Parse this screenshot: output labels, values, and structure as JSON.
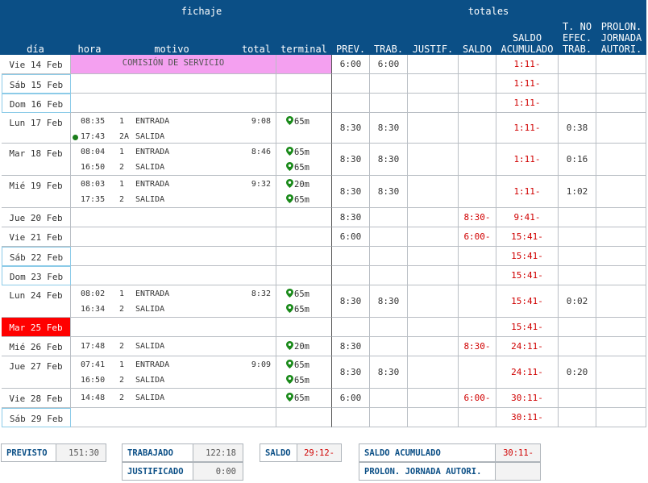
{
  "header": {
    "fichaje": "fichaje",
    "totales": "totales",
    "dia": "día",
    "hora": "hora",
    "motivo": "motivo",
    "total": "total",
    "terminal": "terminal",
    "prev": "PREV.",
    "trab": "TRAB.",
    "justif": "JUSTIF.",
    "saldo": "SALDO",
    "saldo_acum_1": "SALDO",
    "saldo_acum_2": "ACUMULADO",
    "tno_1": "T. NO",
    "tno_2": "EFEC.",
    "tno_3": "TRAB.",
    "prol_1": "PROLON.",
    "prol_2": "JORNADA",
    "prol_3": "AUTORI."
  },
  "rows": [
    {
      "dia": "Vie 14 Feb",
      "type": "weekday",
      "comision": "COMISIÓN DE SERVICIO",
      "entries": [],
      "prev": "6:00",
      "trab": "6:00",
      "saldo": "",
      "acum": "1:11-",
      "tno": ""
    },
    {
      "dia": "Sáb 15 Feb",
      "type": "weekend",
      "entries": [],
      "prev": "",
      "trab": "",
      "saldo": "",
      "acum": "1:11-",
      "tno": ""
    },
    {
      "dia": "Dom 16 Feb",
      "type": "weekend",
      "entries": [],
      "prev": "",
      "trab": "",
      "saldo": "",
      "acum": "1:11-",
      "tno": ""
    },
    {
      "dia": "Lun 17 Feb",
      "type": "weekday",
      "total": "9:08",
      "entries": [
        {
          "hora": "08:35",
          "num": "1",
          "motivo": "ENTRADA",
          "term": "65m"
        },
        {
          "hora": "17:43",
          "num": "2A",
          "motivo": "SALIDA",
          "term": "",
          "dot": true
        }
      ],
      "prev": "8:30",
      "trab": "8:30",
      "saldo": "",
      "acum": "1:11-",
      "tno": "0:38"
    },
    {
      "dia": "Mar 18 Feb",
      "type": "weekday",
      "total": "8:46",
      "entries": [
        {
          "hora": "08:04",
          "num": "1",
          "motivo": "ENTRADA",
          "term": "65m"
        },
        {
          "hora": "16:50",
          "num": "2",
          "motivo": "SALIDA",
          "term": "65m"
        }
      ],
      "prev": "8:30",
      "trab": "8:30",
      "saldo": "",
      "acum": "1:11-",
      "tno": "0:16"
    },
    {
      "dia": "Mié 19 Feb",
      "type": "weekday",
      "total": "9:32",
      "entries": [
        {
          "hora": "08:03",
          "num": "1",
          "motivo": "ENTRADA",
          "term": "20m"
        },
        {
          "hora": "17:35",
          "num": "2",
          "motivo": "SALIDA",
          "term": "65m"
        }
      ],
      "prev": "8:30",
      "trab": "8:30",
      "saldo": "",
      "acum": "1:11-",
      "tno": "1:02"
    },
    {
      "dia": "Jue 20 Feb",
      "type": "weekday",
      "entries": [],
      "prev": "8:30",
      "trab": "",
      "saldo": "8:30-",
      "acum": "9:41-",
      "tno": ""
    },
    {
      "dia": "Vie 21 Feb",
      "type": "weekday",
      "entries": [],
      "prev": "6:00",
      "trab": "",
      "saldo": "6:00-",
      "acum": "15:41-",
      "tno": ""
    },
    {
      "dia": "Sáb 22 Feb",
      "type": "weekend",
      "entries": [],
      "prev": "",
      "trab": "",
      "saldo": "",
      "acum": "15:41-",
      "tno": ""
    },
    {
      "dia": "Dom 23 Feb",
      "type": "weekend",
      "entries": [],
      "prev": "",
      "trab": "",
      "saldo": "",
      "acum": "15:41-",
      "tno": ""
    },
    {
      "dia": "Lun 24 Feb",
      "type": "weekday",
      "total": "8:32",
      "entries": [
        {
          "hora": "08:02",
          "num": "1",
          "motivo": "ENTRADA",
          "term": "65m"
        },
        {
          "hora": "16:34",
          "num": "2",
          "motivo": "SALIDA",
          "term": "65m"
        }
      ],
      "prev": "8:30",
      "trab": "8:30",
      "saldo": "",
      "acum": "15:41-",
      "tno": "0:02"
    },
    {
      "dia": "Mar 25 Feb",
      "type": "holiday",
      "entries": [],
      "prev": "",
      "trab": "",
      "saldo": "",
      "acum": "15:41-",
      "tno": ""
    },
    {
      "dia": "Mié 26 Feb",
      "type": "weekday",
      "entries": [
        {
          "hora": "17:48",
          "num": "2",
          "motivo": "SALIDA",
          "term": "20m"
        }
      ],
      "prev": "8:30",
      "trab": "",
      "saldo": "8:30-",
      "acum": "24:11-",
      "tno": ""
    },
    {
      "dia": "Jue 27 Feb",
      "type": "weekday",
      "total": "9:09",
      "entries": [
        {
          "hora": "07:41",
          "num": "1",
          "motivo": "ENTRADA",
          "term": "65m"
        },
        {
          "hora": "16:50",
          "num": "2",
          "motivo": "SALIDA",
          "term": "65m"
        }
      ],
      "prev": "8:30",
      "trab": "8:30",
      "saldo": "",
      "acum": "24:11-",
      "tno": "0:20"
    },
    {
      "dia": "Vie 28 Feb",
      "type": "weekday",
      "entries": [
        {
          "hora": "14:48",
          "num": "2",
          "motivo": "SALIDA",
          "term": "65m"
        }
      ],
      "prev": "6:00",
      "trab": "",
      "saldo": "6:00-",
      "acum": "30:11-",
      "tno": ""
    },
    {
      "dia": "Sáb 29 Feb",
      "type": "weekend",
      "entries": [],
      "prev": "",
      "trab": "",
      "saldo": "",
      "acum": "30:11-",
      "tno": ""
    }
  ],
  "summary": {
    "previsto_label": "PREVISTO",
    "previsto_value": "151:30",
    "trabajado_label": "TRABAJADO",
    "trabajado_value": "122:18",
    "justificado_label": "JUSTIFICADO",
    "justificado_value": "0:00",
    "saldo_label": "SALDO",
    "saldo_value": "29:12-",
    "saldo_acum_label": "SALDO ACUMULADO",
    "saldo_acum_value": "30:11-",
    "prolon_label": "PROLON. JORNADA AUTORI.",
    "prolon_value": ""
  },
  "colors": {
    "header_bg": "#0b4f86",
    "negative": "#d00000",
    "comision_bg": "#f4a0f0",
    "holiday_bg": "#ff0000",
    "weekend_border": "#8ccbe8",
    "pin": "#1a8a1a"
  }
}
